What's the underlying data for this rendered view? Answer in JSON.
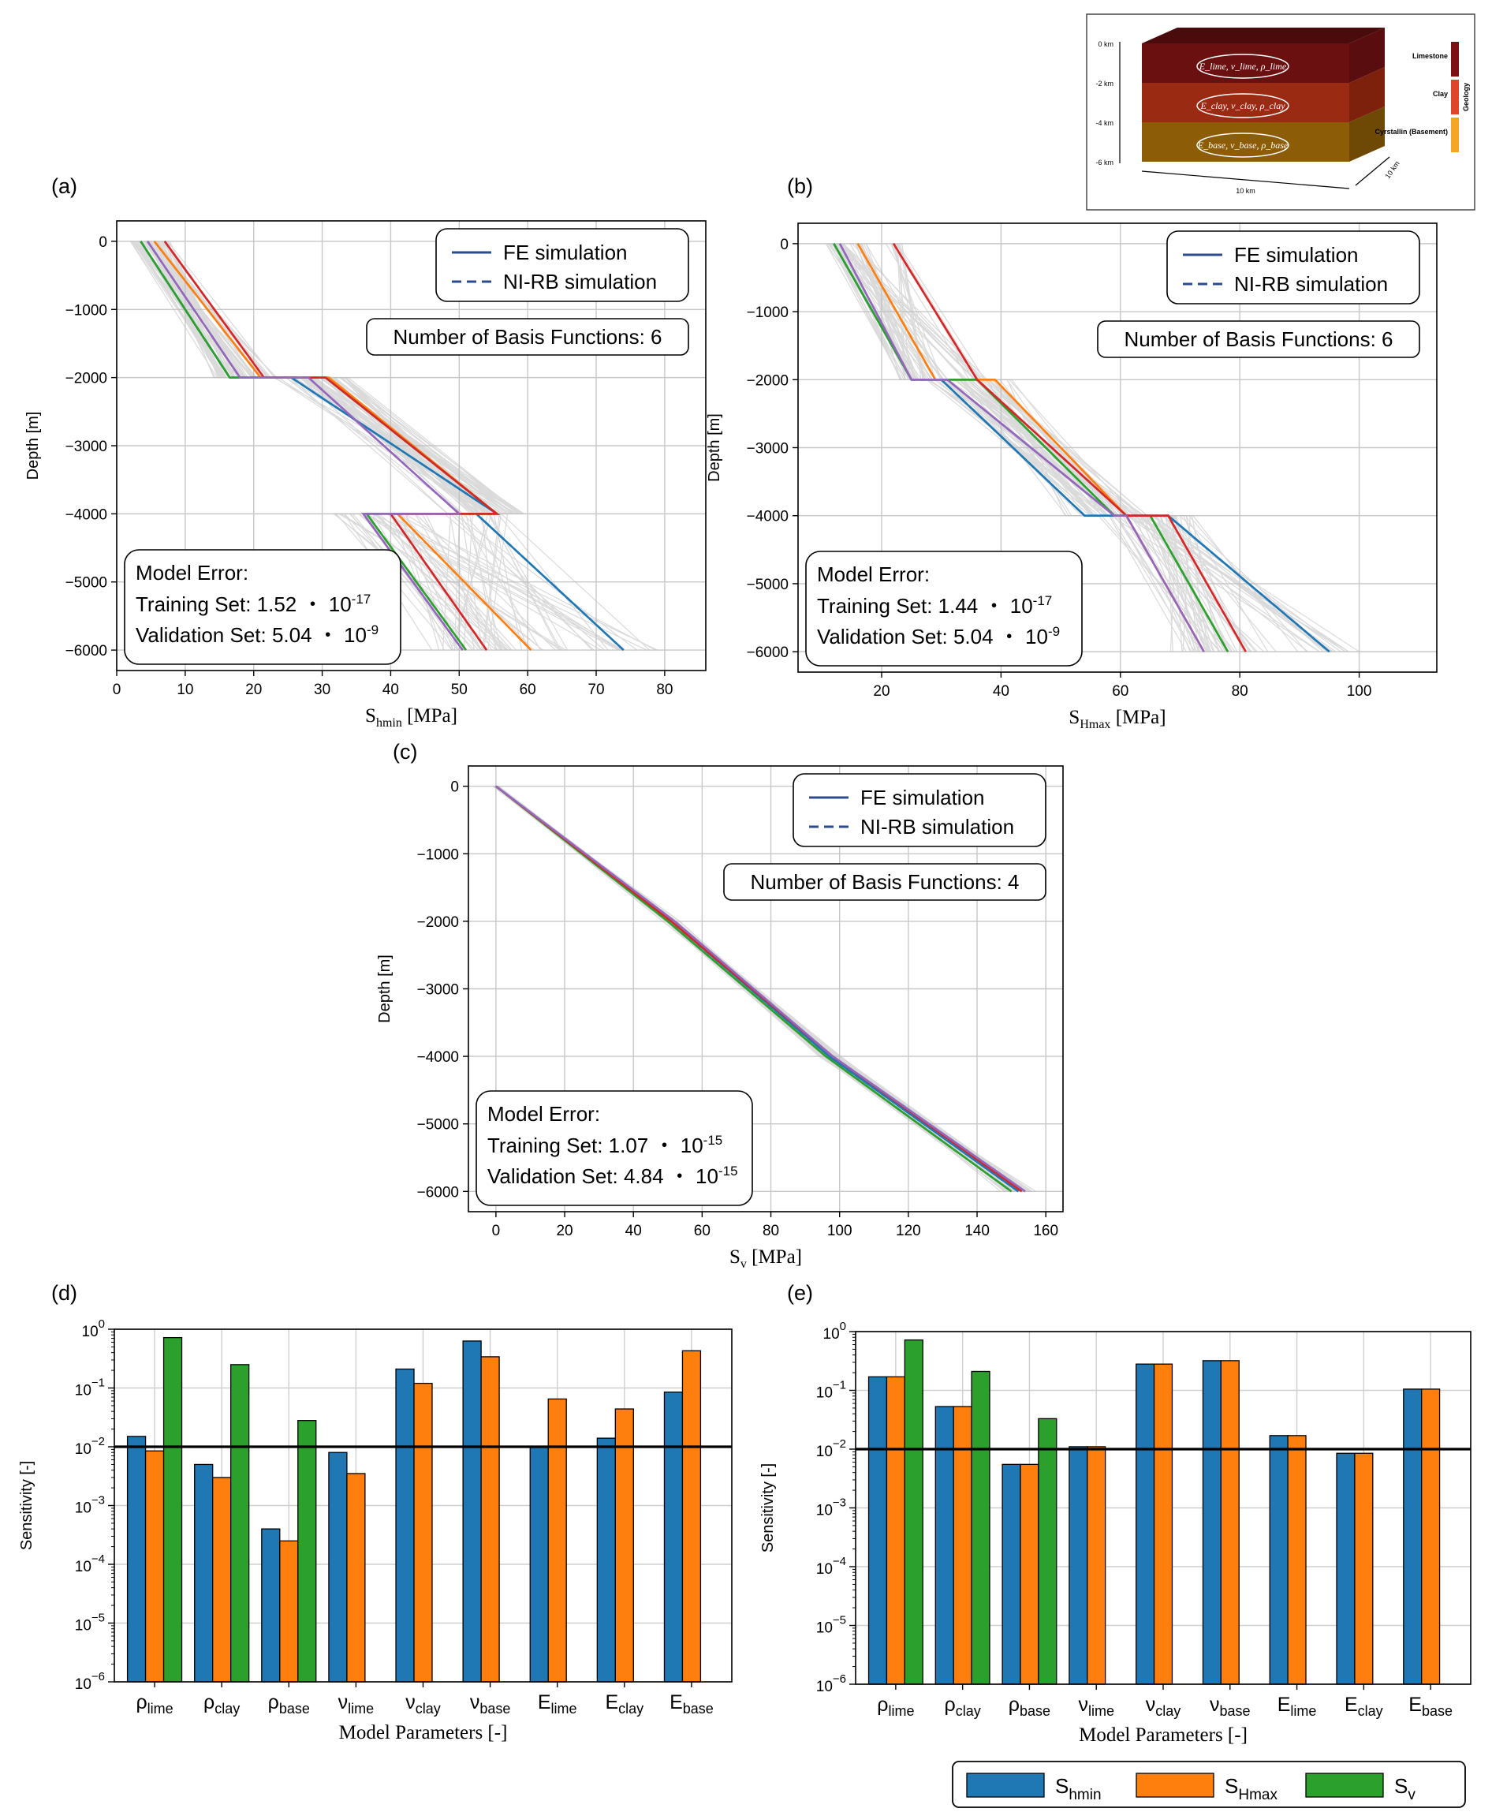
{
  "chart_data": [
    {
      "panel": "(a)",
      "type": "line",
      "xlabel": "Shmin [MPa]",
      "xlabel_main": "S",
      "xlabel_sub": "hmin",
      "xlabel_unit": "[MPa]",
      "ylabel": "Depth [m]",
      "xlim": [
        0,
        86
      ],
      "ylim": [
        -6300,
        300
      ],
      "xticks": [
        0,
        10,
        20,
        30,
        40,
        50,
        60,
        70,
        80
      ],
      "yticks": [
        0,
        -1000,
        -2000,
        -3000,
        -4000,
        -5000,
        -6000
      ],
      "grid": true,
      "legend": [
        "FE simulation",
        "NI-RB simulation"
      ],
      "basis_text": "Number of Basis Functions: 6",
      "error_title": "Model Error:",
      "training_label": "Training Set: 1.52",
      "training_exp": "-17",
      "validation_label": "Validation Set: 5.04",
      "validation_exp": "-9",
      "series": [
        {
          "color": "#1f77b4",
          "x": [
            3.5,
            16.5,
            25.5,
            55.5,
            52.5,
            74
          ],
          "y": [
            0,
            -2000,
            -2000,
            -4000,
            -4000,
            -6000
          ]
        },
        {
          "color": "#ff7f0e",
          "x": [
            5.5,
            21,
            31,
            55.5,
            41,
            60.5
          ],
          "y": [
            0,
            -2000,
            -2000,
            -4000,
            -4000,
            -6000
          ]
        },
        {
          "color": "#2ca02c",
          "x": [
            3.5,
            16.5,
            30.5,
            55.5,
            36.5,
            51
          ],
          "y": [
            0,
            -2000,
            -2000,
            -4000,
            -4000,
            -6000
          ]
        },
        {
          "color": "#d62728",
          "x": [
            7,
            21.5,
            30.5,
            55.5,
            40,
            54
          ],
          "y": [
            0,
            -2000,
            -2000,
            -4000,
            -4000,
            -6000
          ]
        },
        {
          "color": "#9467bd",
          "x": [
            4.5,
            18,
            28,
            50,
            36,
            50.5
          ],
          "y": [
            0,
            -2000,
            -2000,
            -4000,
            -4000,
            -6000
          ]
        }
      ]
    },
    {
      "panel": "(b)",
      "type": "line",
      "xlabel": "SHmax [MPa]",
      "xlabel_main": "S",
      "xlabel_sub": "Hmax",
      "xlabel_unit": "[MPa]",
      "ylabel": "Depth [m]",
      "xlim": [
        6,
        113
      ],
      "ylim": [
        -6300,
        300
      ],
      "xticks": [
        20,
        40,
        60,
        80,
        100
      ],
      "yticks": [
        0,
        -1000,
        -2000,
        -3000,
        -4000,
        -5000,
        -6000
      ],
      "grid": true,
      "legend": [
        "FE simulation",
        "NI-RB simulation"
      ],
      "basis_text": "Number of Basis Functions: 6",
      "error_title": "Model Error:",
      "training_label": "Training Set: 1.44",
      "training_exp": "-17",
      "validation_label": "Validation Set: 5.04",
      "validation_exp": "-9",
      "series": [
        {
          "color": "#1f77b4",
          "x": [
            12,
            25,
            30,
            54,
            68,
            95
          ],
          "y": [
            0,
            -2000,
            -2000,
            -4000,
            -4000,
            -6000
          ]
        },
        {
          "color": "#ff7f0e",
          "x": [
            16,
            29,
            39,
            61,
            61,
            74
          ],
          "y": [
            0,
            -2000,
            -2000,
            -4000,
            -4000,
            -6000
          ]
        },
        {
          "color": "#2ca02c",
          "x": [
            12,
            25,
            36,
            59,
            65,
            78
          ],
          "y": [
            0,
            -2000,
            -2000,
            -4000,
            -4000,
            -6000
          ]
        },
        {
          "color": "#d62728",
          "x": [
            22,
            36,
            36,
            61,
            68,
            81
          ],
          "y": [
            0,
            -2000,
            -2000,
            -4000,
            -4000,
            -6000
          ]
        },
        {
          "color": "#9467bd",
          "x": [
            13,
            25,
            31,
            59,
            61,
            74
          ],
          "y": [
            0,
            -2000,
            -2000,
            -4000,
            -4000,
            -6000
          ]
        }
      ]
    },
    {
      "panel": "(c)",
      "type": "line",
      "xlabel": "Sv [MPa]",
      "xlabel_main": "S",
      "xlabel_sub": "v",
      "xlabel_unit": "[MPa]",
      "ylabel": "Depth [m]",
      "xlim": [
        -8,
        165
      ],
      "ylim": [
        -6300,
        300
      ],
      "xticks": [
        0,
        20,
        40,
        60,
        80,
        100,
        120,
        140,
        160
      ],
      "yticks": [
        0,
        -1000,
        -2000,
        -3000,
        -4000,
        -5000,
        -6000
      ],
      "grid": true,
      "legend": [
        "FE simulation",
        "NI-RB simulation"
      ],
      "basis_text": "Number of Basis Functions: 4",
      "error_title": "Model Error:",
      "training_label": "Training Set: 1.07",
      "training_exp": "-15",
      "validation_label": "Validation Set: 4.84",
      "validation_exp": "-15",
      "series": [
        {
          "color": "#1f77b4",
          "x": [
            0,
            51,
            97,
            152
          ],
          "y": [
            0,
            -2000,
            -4000,
            -6000
          ]
        },
        {
          "color": "#2ca02c",
          "x": [
            0,
            50,
            96,
            150
          ],
          "y": [
            0,
            -2000,
            -4000,
            -6000
          ]
        },
        {
          "color": "#d62728",
          "x": [
            0,
            51,
            98,
            153
          ],
          "y": [
            0,
            -2000,
            -4000,
            -6000
          ]
        },
        {
          "color": "#9467bd",
          "x": [
            0,
            52,
            98,
            154
          ],
          "y": [
            0,
            -2000,
            -4000,
            -6000
          ]
        }
      ]
    },
    {
      "panel": "(d)",
      "type": "bar",
      "yscale": "log",
      "ylim": [
        1e-06,
        1
      ],
      "ylabel": "Sensitivity [-]",
      "xlabel": "Model Parameters [-]",
      "threshold": 0.01,
      "grid": true,
      "categories": [
        "ρlime",
        "ρclay",
        "ρbase",
        "νlime",
        "νclay",
        "νbase",
        "Elime",
        "Eclay",
        "Ebase"
      ],
      "series": [
        {
          "name": "Shmin",
          "color": "#1f77b4",
          "values": [
            0.015,
            0.005,
            0.0004,
            0.008,
            0.21,
            0.63,
            0.01,
            0.014,
            0.085
          ]
        },
        {
          "name": "SHmax",
          "color": "#ff7f0e",
          "values": [
            0.0085,
            0.003,
            0.00025,
            0.0035,
            0.12,
            0.34,
            0.065,
            0.044,
            0.43
          ]
        },
        {
          "name": "Sv",
          "color": "#2ca02c",
          "values": [
            0.72,
            0.25,
            0.028,
            null,
            null,
            null,
            null,
            null,
            null
          ]
        }
      ]
    },
    {
      "panel": "(e)",
      "type": "bar",
      "yscale": "log",
      "ylim": [
        1e-06,
        1
      ],
      "ylabel": "Sensitivity [-]",
      "xlabel": "Model Parameters [-]",
      "threshold": 0.01,
      "grid": true,
      "categories": [
        "ρlime",
        "ρclay",
        "ρbase",
        "νlime",
        "νclay",
        "νbase",
        "Elime",
        "Eclay",
        "Ebase"
      ],
      "series": [
        {
          "name": "Shmin",
          "color": "#1f77b4",
          "values": [
            0.17,
            0.053,
            0.0055,
            0.011,
            0.28,
            0.32,
            0.017,
            0.0085,
            0.105
          ]
        },
        {
          "name": "SHmax",
          "color": "#ff7f0e",
          "values": [
            0.17,
            0.053,
            0.0055,
            0.011,
            0.28,
            0.32,
            0.017,
            0.0085,
            0.105
          ]
        },
        {
          "name": "Sv",
          "color": "#2ca02c",
          "values": [
            0.72,
            0.21,
            0.033,
            null,
            null,
            null,
            null,
            null,
            null
          ]
        }
      ]
    }
  ],
  "bar_legend": [
    {
      "main": "S",
      "sub": "hmin",
      "color": "#1f77b4"
    },
    {
      "main": "S",
      "sub": "Hmax",
      "color": "#ff7f0e"
    },
    {
      "main": "S",
      "sub": "v",
      "color": "#2ca02c"
    }
  ],
  "inset": {
    "depth_labels": [
      "0 km",
      "-2 km",
      "-4 km",
      "-6 km"
    ],
    "layers": [
      {
        "name": "Limestone",
        "color": "#7b1113",
        "front": "#6a1010",
        "top": "#4a0b0c",
        "side": "#5a0d0e",
        "sym": "E",
        "sub": "lime"
      },
      {
        "name": "Clay",
        "color": "#e0442b",
        "front": "#9a2a12",
        "side": "#7d210d",
        "sym": "E",
        "sub": "clay"
      },
      {
        "name": "Cyrstallin (Basement)",
        "color": "#f5a623",
        "front": "#8c5c06",
        "side": "#6e4905",
        "sym": "E",
        "sub": "base"
      }
    ],
    "geology_label": "Geology",
    "width_label": "10 km",
    "depth_label": "10 km"
  }
}
